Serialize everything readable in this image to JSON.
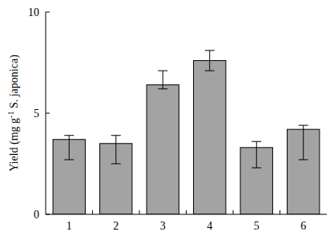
{
  "chart_data": {
    "type": "bar",
    "y_label": "Yield (mg g-1 S. japonica)",
    "categories": [
      "1",
      "2",
      "3",
      "4",
      "5",
      "6"
    ],
    "values": [
      3.7,
      3.5,
      6.4,
      7.6,
      3.3,
      4.2
    ],
    "error_upper": [
      0.2,
      0.4,
      0.7,
      0.5,
      0.3,
      0.2
    ],
    "error_lower": [
      1.0,
      1.0,
      0.2,
      0.5,
      1.0,
      1.5
    ],
    "color": "#a3a3a3",
    "ylim": [
      0,
      10
    ],
    "yticks": [
      0,
      5,
      10
    ],
    "grid": false
  }
}
